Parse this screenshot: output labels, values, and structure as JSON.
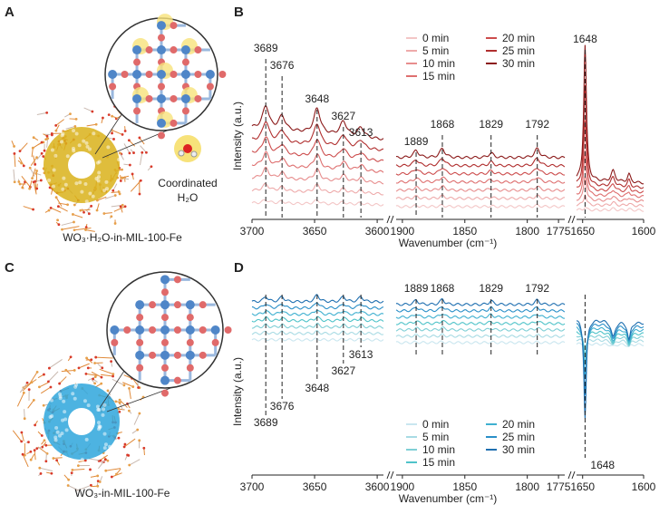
{
  "panels": [
    {
      "letter": "A",
      "caption": "WO₃·H₂O-in-MIL-100-Fe",
      "annotation": [
        "Coordinated",
        "H₂O"
      ]
    },
    {
      "letter": "B",
      "ylabel": "Intensity (a.u.)",
      "xlabel": "Wavenumber (cm⁻¹)",
      "segments": [
        {
          "xlim": [
            3700,
            3595
          ],
          "xticks": [
            3700,
            3650,
            3600
          ]
        },
        {
          "xlim": [
            1905,
            1770
          ],
          "xticks": [
            1900,
            1850,
            1800,
            1775
          ]
        },
        {
          "xlim": [
            1655,
            1600
          ],
          "xticks": [
            1650,
            1600
          ]
        }
      ],
      "peaks": [
        [
          3689,
          3676,
          3648,
          3627,
          3613
        ],
        [
          1889,
          1868,
          1829,
          1792
        ],
        [
          1648
        ]
      ],
      "series": [
        {
          "name": "0 min",
          "color": "#f3c6c6"
        },
        {
          "name": "5 min",
          "color": "#eeaaaa"
        },
        {
          "name": "10 min",
          "color": "#e78d8d"
        },
        {
          "name": "15 min",
          "color": "#de6f6f"
        },
        {
          "name": "20 min",
          "color": "#cc4c4c"
        },
        {
          "name": "25 min",
          "color": "#b02e2e"
        },
        {
          "name": "30 min",
          "color": "#8b1a1a"
        }
      ]
    },
    {
      "letter": "C",
      "caption": "WO₃-in-MIL-100-Fe"
    },
    {
      "letter": "D",
      "ylabel": "Intensity (a.u.)",
      "xlabel": "Wavenumber (cm⁻¹)",
      "segments": [
        {
          "xlim": [
            3700,
            3595
          ],
          "xticks": [
            3700,
            3650,
            3600
          ]
        },
        {
          "xlim": [
            1905,
            1770
          ],
          "xticks": [
            1900,
            1850,
            1800,
            1775
          ]
        },
        {
          "xlim": [
            1655,
            1600
          ],
          "xticks": [
            1650,
            1600
          ]
        }
      ],
      "peaks": [
        [
          3689,
          3676,
          3648,
          3627,
          3613
        ],
        [
          1889,
          1868,
          1829,
          1792
        ],
        [
          1648
        ]
      ],
      "series": [
        {
          "name": "0 min",
          "color": "#c9e6ef"
        },
        {
          "name": "5 min",
          "color": "#a8dbe4"
        },
        {
          "name": "10 min",
          "color": "#7fcfd6"
        },
        {
          "name": "15 min",
          "color": "#4fc3c9"
        },
        {
          "name": "20 min",
          "color": "#3fb0d0"
        },
        {
          "name": "25 min",
          "color": "#2a8fc8"
        },
        {
          "name": "30 min",
          "color": "#1f6fb0"
        }
      ]
    }
  ]
}
